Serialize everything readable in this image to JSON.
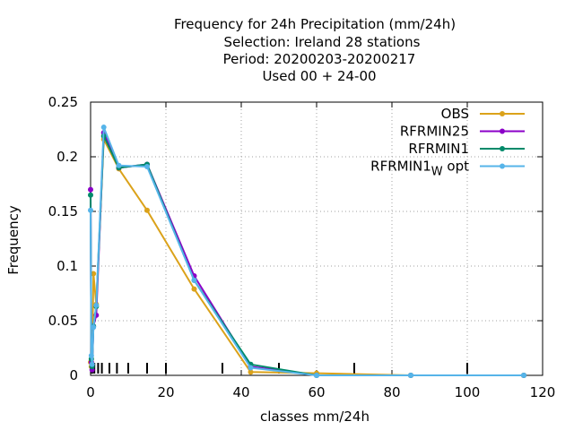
{
  "chart_data": {
    "type": "line",
    "title_lines": [
      "Frequency  for 24h Precipitation (mm/24h)",
      "Selection: Ireland     28 stations",
      "Period: 20200203-20200217",
      "Used  00 + 24-00"
    ],
    "xlabel": "classes mm/24h",
    "ylabel": "Frequency",
    "xlim": [
      0,
      120
    ],
    "ylim": [
      0,
      0.25
    ],
    "xticks": [
      0,
      20,
      40,
      60,
      80,
      100,
      120
    ],
    "yticks": [
      0,
      0.05,
      0.1,
      0.15,
      0.2,
      0.25
    ],
    "ytick_labels": [
      "0",
      "0.05",
      "0.1",
      "0.15",
      "0.2",
      "0.25"
    ],
    "grid": true,
    "legend_position": "top-right",
    "class_markers": [
      0.1,
      0.3,
      0.5,
      1,
      2,
      3,
      5,
      7,
      10,
      15,
      20,
      35,
      50,
      70,
      100
    ],
    "x": [
      0,
      0.2,
      0.4,
      0.75,
      1.5,
      3.5,
      7.5,
      15,
      27.5,
      42.5,
      60,
      85,
      115
    ],
    "series": [
      {
        "name": "OBS",
        "color": "#dba21a",
        "values": [
          0.012,
          0.008,
          0.01,
          0.093,
          0.065,
          0.216,
          0.189,
          0.151,
          0.079,
          0.003,
          0.002,
          0.0,
          0.0
        ]
      },
      {
        "name": "RFRMIN25",
        "color": "#8b00c8",
        "values": [
          0.17,
          0.012,
          0.005,
          0.045,
          0.055,
          0.222,
          0.19,
          0.193,
          0.091,
          0.008,
          0.0,
          0.0,
          0.0
        ]
      },
      {
        "name": "RFRMIN1",
        "color": "#008a6a",
        "values": [
          0.165,
          0.015,
          0.008,
          0.045,
          0.063,
          0.219,
          0.19,
          0.193,
          0.087,
          0.01,
          0.0,
          0.0,
          0.0
        ]
      },
      {
        "name": "RFRMIN1",
        "subscript": "W",
        "suffix": " opt",
        "color": "#56b4e9",
        "values": [
          0.151,
          0.018,
          0.01,
          0.044,
          0.064,
          0.227,
          0.192,
          0.191,
          0.087,
          0.007,
          0.0,
          0.0,
          0.0
        ]
      }
    ]
  }
}
